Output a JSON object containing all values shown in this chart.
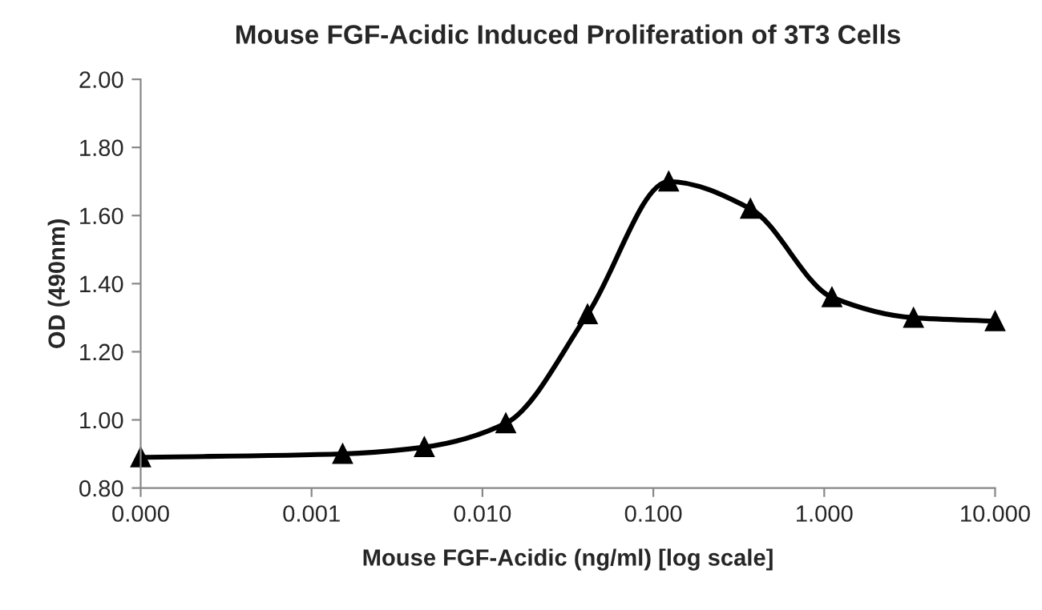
{
  "chart_data": {
    "type": "line",
    "title": "Mouse FGF-Acidic Induced Proliferation of 3T3 Cells",
    "xlabel": "Mouse FGF-Acidic (ng/ml) [log scale]",
    "ylabel": "OD (490nm)",
    "x": [
      0.0001,
      0.00152,
      0.00457,
      0.0137,
      0.0412,
      0.123,
      0.37,
      1.11,
      3.33,
      10
    ],
    "series": [
      {
        "color": "#000000",
        "values": [
          0.89,
          0.9,
          0.92,
          0.99,
          1.31,
          1.7,
          1.62,
          1.36,
          1.3,
          1.29
        ]
      }
    ],
    "log": "x",
    "marker": "triangle",
    "line_style": "solid",
    "grid": false,
    "legend": false,
    "xlim": [
      0.0001,
      10
    ],
    "xticks": [
      {
        "value": 0.0001,
        "label": "0.000"
      },
      {
        "value": 0.001,
        "label": "0.001"
      },
      {
        "value": 0.01,
        "label": "0.010"
      },
      {
        "value": 0.1,
        "label": "0.100"
      },
      {
        "value": 1,
        "label": "1.000"
      },
      {
        "value": 10,
        "label": "10.000"
      }
    ],
    "ylim": [
      0.8,
      2.0
    ],
    "yticks": [
      {
        "value": 0.8,
        "label": "0.80"
      },
      {
        "value": 1.0,
        "label": "1.00"
      },
      {
        "value": 1.2,
        "label": "1.20"
      },
      {
        "value": 1.4,
        "label": "1.40"
      },
      {
        "value": 1.6,
        "label": "1.60"
      },
      {
        "value": 1.8,
        "label": "1.80"
      },
      {
        "value": 2.0,
        "label": "2.00"
      }
    ]
  }
}
